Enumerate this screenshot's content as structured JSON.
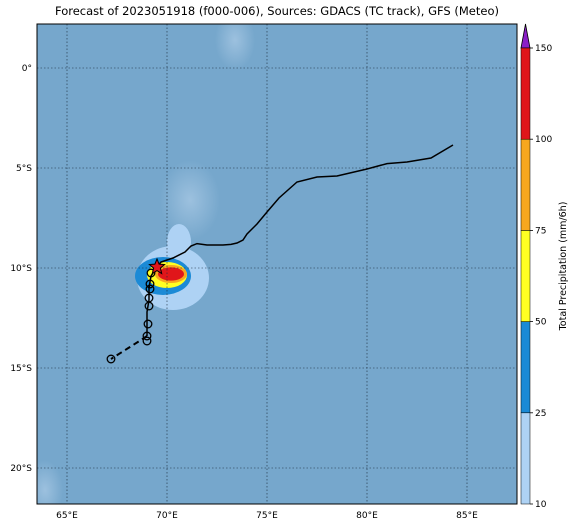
{
  "title": "Forecast of 2023051918 (f000-006), Sources: GDACS (TC track), GFS (Meteo)",
  "map": {
    "lon_range": [
      63.5,
      87.5
    ],
    "lat_range": [
      -21.8,
      2.2
    ],
    "ocean_color": "#76a7cc",
    "lon_ticks": [
      {
        "value": 65,
        "label": "65°E"
      },
      {
        "value": 70,
        "label": "70°E"
      },
      {
        "value": 75,
        "label": "75°E"
      },
      {
        "value": 80,
        "label": "80°E"
      },
      {
        "value": 85,
        "label": "85°E"
      }
    ],
    "lat_ticks": [
      {
        "value": 0,
        "label": "0°"
      },
      {
        "value": -5,
        "label": "5°S"
      },
      {
        "value": -10,
        "label": "10°S"
      },
      {
        "value": -15,
        "label": "15°S"
      },
      {
        "value": -20,
        "label": "20°S"
      }
    ],
    "grid": true
  },
  "track": {
    "past": [
      [
        84.3,
        -3.85
      ],
      [
        83.2,
        -4.5
      ],
      [
        82.0,
        -4.7
      ],
      [
        81.0,
        -4.78
      ],
      [
        80.0,
        -5.05
      ],
      [
        78.5,
        -5.4
      ],
      [
        77.5,
        -5.45
      ],
      [
        76.5,
        -5.7
      ],
      [
        75.6,
        -6.5
      ],
      [
        75.0,
        -7.2
      ],
      [
        74.5,
        -7.8
      ],
      [
        74.0,
        -8.3
      ],
      [
        73.8,
        -8.6
      ],
      [
        73.5,
        -8.75
      ],
      [
        73.2,
        -8.82
      ],
      [
        72.8,
        -8.85
      ],
      [
        72.0,
        -8.85
      ],
      [
        71.5,
        -8.78
      ],
      [
        71.2,
        -8.9
      ],
      [
        70.9,
        -9.2
      ],
      [
        70.3,
        -9.5
      ],
      [
        69.7,
        -9.7
      ],
      [
        69.5,
        -9.95
      ]
    ],
    "forecast_solid": [
      [
        69.5,
        -9.95
      ],
      [
        69.2,
        -10.4
      ],
      [
        69.1,
        -11.0
      ],
      [
        69.1,
        -11.6
      ],
      [
        69.0,
        -12.2
      ],
      [
        69.0,
        -12.8
      ],
      [
        69.0,
        -13.4
      ]
    ],
    "forecast_dashed": [
      [
        69.0,
        -13.4
      ],
      [
        68.7,
        -13.6
      ],
      [
        67.2,
        -14.55
      ]
    ],
    "forecast_points": [
      [
        69.2,
        -10.25
      ],
      [
        69.15,
        -10.8
      ],
      [
        69.15,
        -11.05
      ],
      [
        69.1,
        -11.5
      ],
      [
        69.1,
        -11.9
      ],
      [
        69.05,
        -12.8
      ],
      [
        69.0,
        -13.4
      ],
      [
        69.0,
        -13.65
      ],
      [
        67.2,
        -14.55
      ]
    ],
    "current_position": [
      69.5,
      -9.95
    ],
    "current_color": "#e0161a"
  },
  "precipitation": {
    "units": "mm/6h",
    "cells": [
      {
        "lon": 70.6,
        "lat": -8.7,
        "rx": 0.6,
        "ry": 0.9,
        "level": 0
      },
      {
        "lon": 70.3,
        "lat": -10.5,
        "rx": 1.8,
        "ry": 1.6,
        "level": 0
      },
      {
        "lon": 69.8,
        "lat": -10.4,
        "rx": 1.4,
        "ry": 0.95,
        "level": 1
      },
      {
        "lon": 70.0,
        "lat": -10.35,
        "rx": 1.0,
        "ry": 0.65,
        "level": 2
      },
      {
        "lon": 70.2,
        "lat": -10.3,
        "rx": 0.8,
        "ry": 0.45,
        "level": 3
      },
      {
        "lon": 70.2,
        "lat": -10.3,
        "rx": 0.65,
        "ry": 0.33,
        "level": 4
      }
    ]
  },
  "colorbar": {
    "label": "Total Precipitation (mm/6h)",
    "levels": [
      10,
      25,
      50,
      75,
      100,
      150
    ],
    "level_labels": [
      "10",
      "25",
      "50",
      "75",
      "100",
      "150"
    ],
    "colors": [
      "#aed2f4",
      "#1b8ad6",
      "#ffff22",
      "#f7a71f",
      "#e0161a"
    ],
    "extend_color": "#8a1ec7"
  }
}
